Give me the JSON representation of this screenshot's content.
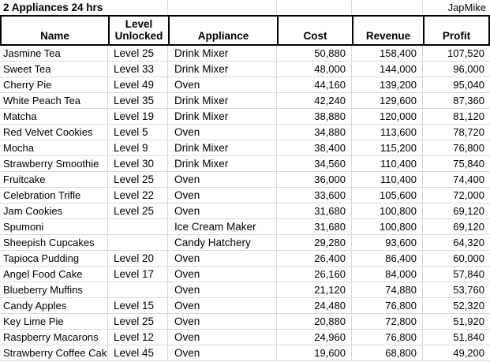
{
  "title": "2 Appliances 24 hrs",
  "author": "JapMike",
  "columns": {
    "name": "Name",
    "level": "Level Unlocked",
    "appliance": "Appliance",
    "cost": "Cost",
    "revenue": "Revenue",
    "profit": "Profit"
  },
  "rows": [
    {
      "name": "Jasmine Tea",
      "level": "Level 25",
      "appliance": "Drink Mixer",
      "cost": "50,880",
      "revenue": "158,400",
      "profit": "107,520"
    },
    {
      "name": "Sweet Tea",
      "level": "Level 33",
      "appliance": "Drink Mixer",
      "cost": "48,000",
      "revenue": "144,000",
      "profit": "96,000"
    },
    {
      "name": "Cherry Pie",
      "level": "Level 49",
      "appliance": "Oven",
      "cost": "44,160",
      "revenue": "139,200",
      "profit": "95,040"
    },
    {
      "name": "White Peach Tea",
      "level": "Level 35",
      "appliance": "Drink Mixer",
      "cost": "42,240",
      "revenue": "129,600",
      "profit": "87,360"
    },
    {
      "name": "Matcha",
      "level": "Level 19",
      "appliance": "Drink Mixer",
      "cost": "38,880",
      "revenue": "120,000",
      "profit": "81,120"
    },
    {
      "name": "Red Velvet Cookies",
      "level": "Level 5",
      "appliance": "Oven",
      "cost": "34,880",
      "revenue": "113,600",
      "profit": "78,720"
    },
    {
      "name": "Mocha",
      "level": "Level 9",
      "appliance": "Drink Mixer",
      "cost": "38,400",
      "revenue": "115,200",
      "profit": "76,800"
    },
    {
      "name": "Strawberry Smoothie",
      "level": "Level 30",
      "appliance": "Drink Mixer",
      "cost": "34,560",
      "revenue": "110,400",
      "profit": "75,840"
    },
    {
      "name": "Fruitcake",
      "level": "Level 25",
      "appliance": "Oven",
      "cost": "36,000",
      "revenue": "110,400",
      "profit": "74,400"
    },
    {
      "name": "Celebration Trifle",
      "level": "Level 22",
      "appliance": "Oven",
      "cost": "33,600",
      "revenue": "105,600",
      "profit": "72,000"
    },
    {
      "name": "Jam Cookies",
      "level": "Level 25",
      "appliance": "Oven",
      "cost": "31,680",
      "revenue": "100,800",
      "profit": "69,120"
    },
    {
      "name": "Spumoni",
      "level": "",
      "appliance": "Ice Cream Maker",
      "cost": "31,680",
      "revenue": "100,800",
      "profit": "69,120"
    },
    {
      "name": "Sheepish Cupcakes",
      "level": "",
      "appliance": "Candy Hatchery",
      "cost": "29,280",
      "revenue": "93,600",
      "profit": "64,320"
    },
    {
      "name": "Tapioca Pudding",
      "level": "Level 20",
      "appliance": "Oven",
      "cost": "26,400",
      "revenue": "86,400",
      "profit": "60,000"
    },
    {
      "name": "Angel Food Cake",
      "level": "Level 17",
      "appliance": "Oven",
      "cost": "26,160",
      "revenue": "84,000",
      "profit": "57,840"
    },
    {
      "name": "Blueberry Muffins",
      "level": "",
      "appliance": "Oven",
      "cost": "21,120",
      "revenue": "74,880",
      "profit": "53,760"
    },
    {
      "name": "Candy Apples",
      "level": "Level 15",
      "appliance": "Oven",
      "cost": "24,480",
      "revenue": "76,800",
      "profit": "52,320"
    },
    {
      "name": "Key Lime Pie",
      "level": "Level 25",
      "appliance": "Oven",
      "cost": "20,880",
      "revenue": "72,800",
      "profit": "51,920"
    },
    {
      "name": "Raspberry Macarons",
      "level": "Level 12",
      "appliance": "Oven",
      "cost": "24,960",
      "revenue": "76,800",
      "profit": "51,840"
    },
    {
      "name": "Strawberry Coffee Cak",
      "level": "Level 45",
      "appliance": "Oven",
      "cost": "19,600",
      "revenue": "68,800",
      "profit": "49,200"
    }
  ]
}
